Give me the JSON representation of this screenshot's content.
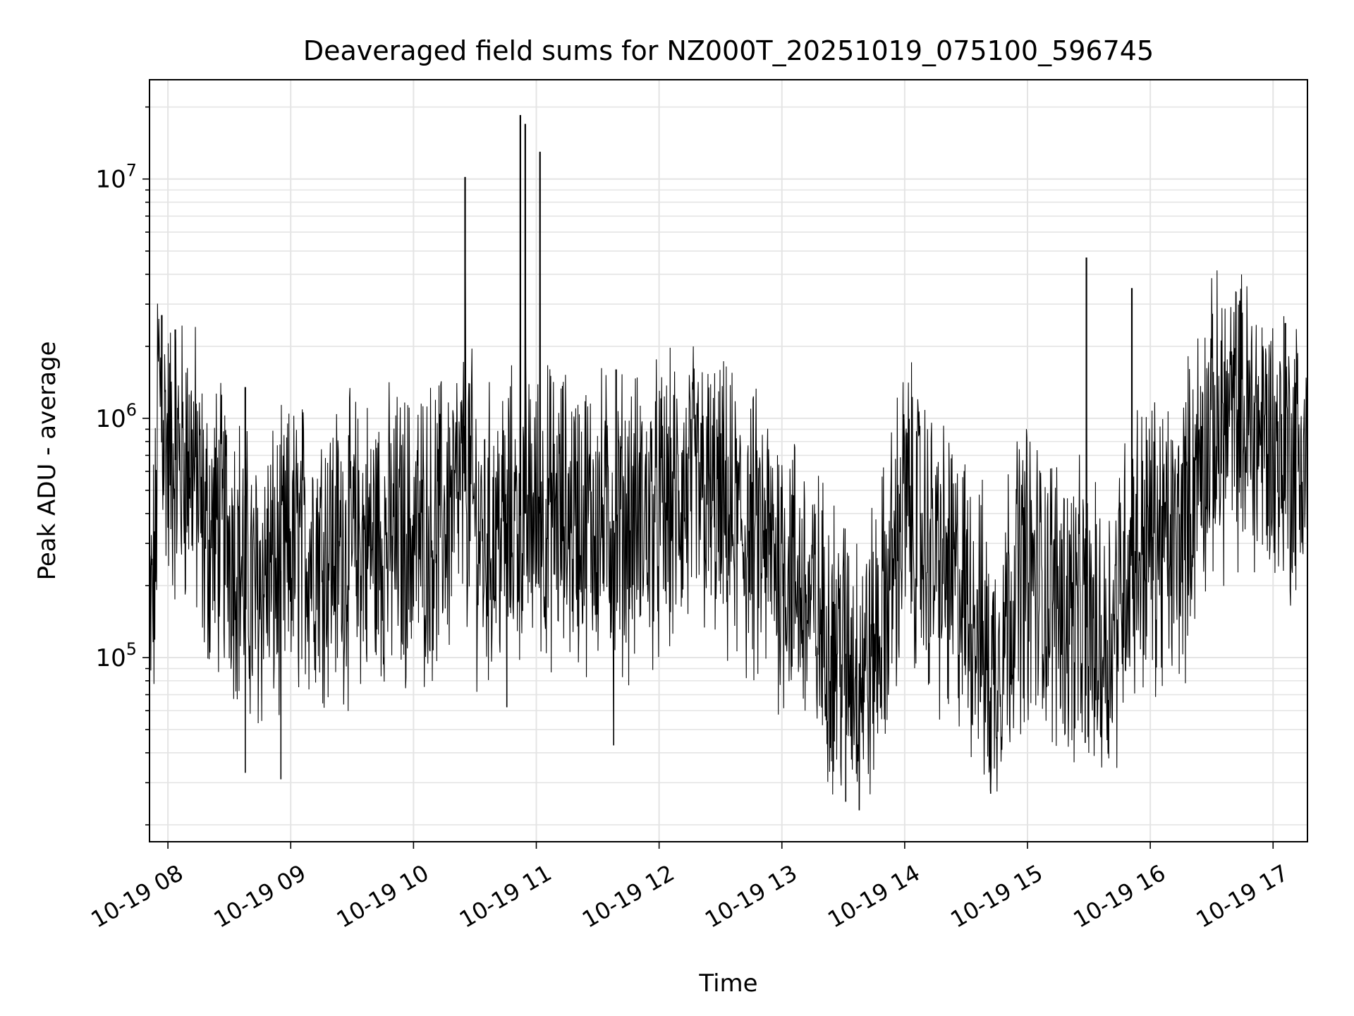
{
  "chart_data": {
    "type": "line",
    "title": "Deaveraged field sums for NZ000T_20251019_075100_596745",
    "xlabel": "Time",
    "ylabel": "Peak ADU - average",
    "y_scale": "log",
    "xlim": [
      7.85,
      17.28
    ],
    "ylim": [
      17000,
      26000000
    ],
    "grid": true,
    "x_ticks": [
      {
        "value": 8,
        "label": "10-19 08"
      },
      {
        "value": 9,
        "label": "10-19 09"
      },
      {
        "value": 10,
        "label": "10-19 10"
      },
      {
        "value": 11,
        "label": "10-19 11"
      },
      {
        "value": 12,
        "label": "10-19 12"
      },
      {
        "value": 13,
        "label": "10-19 13"
      },
      {
        "value": 14,
        "label": "10-19 14"
      },
      {
        "value": 15,
        "label": "10-19 15"
      },
      {
        "value": 16,
        "label": "10-19 16"
      },
      {
        "value": 17,
        "label": "10-19 17"
      }
    ],
    "y_ticks": [
      {
        "value": 100000,
        "base": "10",
        "exp": "5"
      },
      {
        "value": 1000000,
        "base": "10",
        "exp": "6"
      },
      {
        "value": 10000000,
        "base": "10",
        "exp": "7"
      }
    ],
    "series": [
      {
        "name": "Peak ADU - average",
        "color": "#000000",
        "baseline": [
          [
            7.85,
            120000
          ],
          [
            7.9,
            250000
          ],
          [
            7.92,
            1500000
          ],
          [
            8.0,
            700000
          ],
          [
            8.1,
            650000
          ],
          [
            8.2,
            700000
          ],
          [
            8.3,
            320000
          ],
          [
            8.4,
            350000
          ],
          [
            8.5,
            330000
          ],
          [
            8.6,
            250000
          ],
          [
            8.7,
            180000
          ],
          [
            8.8,
            230000
          ],
          [
            8.9,
            220000
          ],
          [
            9.0,
            280000
          ],
          [
            9.2,
            300000
          ],
          [
            9.4,
            280000
          ],
          [
            9.6,
            300000
          ],
          [
            9.8,
            310000
          ],
          [
            10.0,
            320000
          ],
          [
            10.2,
            350000
          ],
          [
            10.35,
            450000
          ],
          [
            10.45,
            520000
          ],
          [
            10.55,
            300000
          ],
          [
            10.7,
            350000
          ],
          [
            10.9,
            400000
          ],
          [
            11.1,
            400000
          ],
          [
            11.3,
            380000
          ],
          [
            11.5,
            380000
          ],
          [
            11.7,
            370000
          ],
          [
            11.9,
            380000
          ],
          [
            12.1,
            420000
          ],
          [
            12.3,
            500000
          ],
          [
            12.5,
            400000
          ],
          [
            12.7,
            320000
          ],
          [
            12.9,
            280000
          ],
          [
            13.05,
            250000
          ],
          [
            13.2,
            170000
          ],
          [
            13.4,
            120000
          ],
          [
            13.55,
            100000
          ],
          [
            13.7,
            90000
          ],
          [
            13.85,
            170000
          ],
          [
            14.0,
            450000
          ],
          [
            14.1,
            350000
          ],
          [
            14.2,
            280000
          ],
          [
            14.3,
            230000
          ],
          [
            14.45,
            190000
          ],
          [
            14.6,
            150000
          ],
          [
            14.7,
            75000
          ],
          [
            14.8,
            130000
          ],
          [
            14.9,
            220000
          ],
          [
            15.0,
            230000
          ],
          [
            15.1,
            200000
          ],
          [
            15.3,
            170000
          ],
          [
            15.5,
            130000
          ],
          [
            15.6,
            110000
          ],
          [
            15.7,
            140000
          ],
          [
            15.8,
            250000
          ],
          [
            16.0,
            320000
          ],
          [
            16.2,
            280000
          ],
          [
            16.3,
            400000
          ],
          [
            16.4,
            700000
          ],
          [
            16.5,
            850000
          ],
          [
            16.6,
            950000
          ],
          [
            16.7,
            1000000
          ],
          [
            16.8,
            950000
          ],
          [
            16.9,
            900000
          ],
          [
            17.0,
            750000
          ],
          [
            17.1,
            700000
          ],
          [
            17.2,
            700000
          ],
          [
            17.28,
            650000
          ]
        ],
        "spikes": [
          [
            7.95,
            2700000
          ],
          [
            8.06,
            2350000
          ],
          [
            8.63,
            1350000
          ],
          [
            10.42,
            10200000
          ],
          [
            10.87,
            18500000
          ],
          [
            10.91,
            17000000
          ],
          [
            11.03,
            13000000
          ],
          [
            11.65,
            1600000
          ],
          [
            15.48,
            4700000
          ],
          [
            15.85,
            3500000
          ],
          [
            16.73,
            3100000
          ],
          [
            17.1,
            2500000
          ]
        ],
        "dips": [
          [
            8.63,
            33000
          ],
          [
            8.92,
            31000
          ],
          [
            10.76,
            62000
          ],
          [
            11.63,
            43000
          ],
          [
            13.52,
            25000
          ],
          [
            13.63,
            23000
          ],
          [
            14.7,
            27000
          ],
          [
            15.47,
            44000
          ]
        ]
      }
    ]
  }
}
